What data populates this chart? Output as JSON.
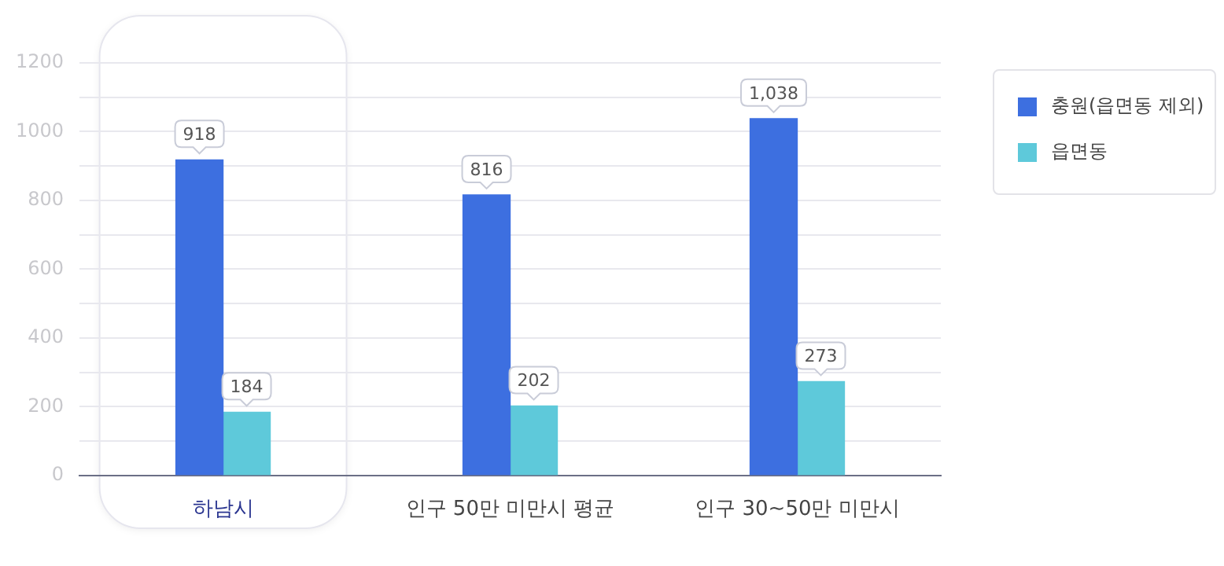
{
  "chart_data": {
    "type": "bar",
    "categories": [
      "하남시",
      "인구 50만 미만시 평균",
      "인구 30~50만 미만시"
    ],
    "series": [
      {
        "name": "충원(읍면동 제외)",
        "color": "#3d6fe0",
        "values": [
          918,
          816,
          1038
        ]
      },
      {
        "name": "읍면동",
        "color": "#5ec9da",
        "values": [
          184,
          202,
          273
        ]
      }
    ],
    "value_labels": [
      [
        "918",
        "816",
        "1,038"
      ],
      [
        "184",
        "202",
        "273"
      ]
    ],
    "ylim": [
      0,
      1200
    ],
    "yticks": [
      0,
      {
        "value": 100,
        "label": null
      },
      200,
      {
        "value": 300,
        "label": null
      },
      400,
      {
        "value": 500,
        "label": null
      },
      600,
      {
        "value": 700,
        "label": null
      },
      800,
      {
        "value": 900,
        "label": null
      },
      1000,
      {
        "value": 1100,
        "label": null
      },
      1200
    ],
    "bands": [
      {
        "axis": "x",
        "from": "하남시",
        "to": "하남시",
        "color": "#e6e6ee"
      }
    ],
    "grid": "y",
    "legend": "right"
  }
}
